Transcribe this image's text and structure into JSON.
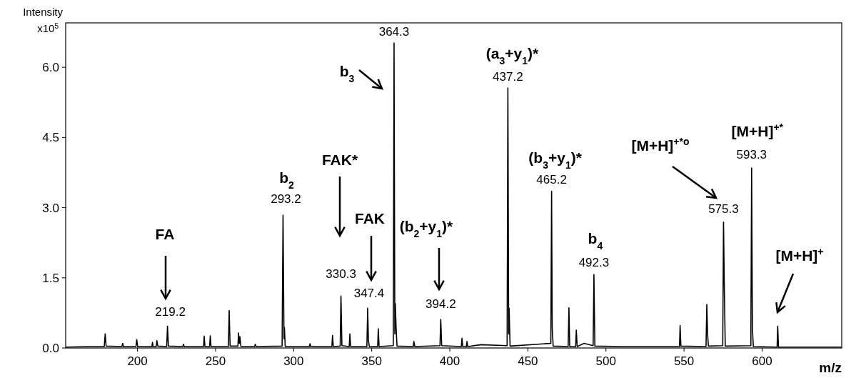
{
  "chart_data": {
    "type": "line",
    "xlabel": "m/z",
    "ylabel": "Intensity x10$^{5}$",
    "xlim": [
      154,
      651
    ],
    "ylim": [
      0,
      6.95
    ],
    "xticks": [
      200,
      250,
      300,
      350,
      400,
      450,
      500,
      550,
      600
    ],
    "yticks": [
      {
        "value": 0,
        "label": "0.0"
      },
      {
        "value": 1.5,
        "label": "1.5"
      },
      {
        "value": 3,
        "label": "3.0"
      },
      {
        "value": 4.5,
        "label": "4.5"
      },
      {
        "value": 6,
        "label": "6.0"
      }
    ],
    "grid": false,
    "marker": "none",
    "line_style": "solid",
    "series": [
      {
        "color": "#000000",
        "x": [
          154,
          170,
          178.7,
          179.3,
          179.9,
          190,
          190.5,
          191,
          199,
          199.5,
          200.1,
          209.2,
          209.6,
          210,
          212,
          212.4,
          213,
          218.7,
          219.2,
          219.8,
          229,
          229.4,
          230,
          242.3,
          242.7,
          243.2,
          246.2,
          246.6,
          247.1,
          258.2,
          258.7,
          259.3,
          264.3,
          264.7,
          265.2,
          265.6,
          266.2,
          275,
          275.4,
          276,
          292.6,
          293.2,
          293.8,
          294.1,
          294.6,
          310,
          310.5,
          311,
          324.5,
          324.9,
          325.4,
          329.8,
          330.3,
          330.9,
          335.6,
          336,
          336.5,
          346.9,
          347.4,
          347.9,
          348.5,
          353.8,
          354.2,
          354.7,
          363.8,
          364.3,
          364.8,
          365.1,
          365.6,
          366.2,
          376.6,
          377,
          377.6,
          393.7,
          394.2,
          394.8,
          407.4,
          407.8,
          408.3,
          410.6,
          411,
          411.5,
          420,
          436.7,
          437.2,
          437.7,
          438,
          438.6,
          464.7,
          465.2,
          465.6,
          466.2,
          475.8,
          476.3,
          476.8,
          480.6,
          481,
          481.6,
          486,
          491.8,
          492.3,
          492.9,
          510,
          547.1,
          547.5,
          548,
          564.1,
          564.6,
          565.1,
          565.6,
          574.8,
          575.3,
          575.8,
          576.4,
          592.8,
          593.3,
          593.8,
          594.4,
          609.6,
          610,
          610.5,
          651
        ],
        "values": [
          0.02,
          0.03,
          0.03,
          0.3,
          0.04,
          0.03,
          0.1,
          0.03,
          0.03,
          0.18,
          0.03,
          0.03,
          0.12,
          0.03,
          0.03,
          0.16,
          0.04,
          0.03,
          0.47,
          0.04,
          0.03,
          0.08,
          0.03,
          0.03,
          0.25,
          0.03,
          0.03,
          0.26,
          0.03,
          0.03,
          0.8,
          0.04,
          0.04,
          0.32,
          0.1,
          0.24,
          0.03,
          0.03,
          0.08,
          0.03,
          0.04,
          2.84,
          0.2,
          0.44,
          0.03,
          0.03,
          0.09,
          0.03,
          0.03,
          0.27,
          0.03,
          0.04,
          1.11,
          0.05,
          0.03,
          0.3,
          0.03,
          0.03,
          0.85,
          0.15,
          0.03,
          0.03,
          0.41,
          0.03,
          0.05,
          6.52,
          0.3,
          0.95,
          0.44,
          0.04,
          0.03,
          0.14,
          0.03,
          0.05,
          0.61,
          0.05,
          0.03,
          0.21,
          0.03,
          0.03,
          0.14,
          0.03,
          0.07,
          0.05,
          5.56,
          0.3,
          0.85,
          0.04,
          0.1,
          3.35,
          0.41,
          0.04,
          0.03,
          0.86,
          0.03,
          0.03,
          0.38,
          0.03,
          0.1,
          0.05,
          1.57,
          0.04,
          0.03,
          0.03,
          0.48,
          0.04,
          0.03,
          0.93,
          0.3,
          0.04,
          0.05,
          2.69,
          1.35,
          0.04,
          0.05,
          3.85,
          0.41,
          0.03,
          0.02,
          0.47,
          0.02,
          0.02
        ]
      }
    ],
    "annotations": [
      {
        "text": "219.2",
        "x": 219.2,
        "y": 0.47
      },
      {
        "text": "293.2",
        "x": 293.2,
        "y": 2.84
      },
      {
        "text": "330.3",
        "x": 330.3,
        "y": 1.11
      },
      {
        "text": "347.4",
        "x": 347.4,
        "y": 0.85
      },
      {
        "text": "364.3",
        "x": 364.3,
        "y": 6.52
      },
      {
        "text": "394.2",
        "x": 394.2,
        "y": 0.61
      },
      {
        "text": "437.2",
        "x": 437.2,
        "y": 5.56
      },
      {
        "text": "465.2",
        "x": 465.2,
        "y": 3.35
      },
      {
        "text": "492.3",
        "x": 492.3,
        "y": 1.57
      },
      {
        "text": "575.3",
        "x": 575.3,
        "y": 2.69
      },
      {
        "text": "593.3",
        "x": 593.3,
        "y": 3.85
      },
      "FA",
      {
        "text": "b$_{2}$",
        "x": 293.2,
        "y": 2.84
      },
      "FAK*",
      "FAK",
      "b$_{3}$",
      "(b$_{2}$+y$_{1}$)*",
      {
        "text": "(a$_{3}$+y$_{1}$)*",
        "x": 437.2,
        "y": 5.56
      },
      {
        "text": "(b$_{3}$+y$_{1}$)*",
        "x": 465.2,
        "y": 3.35
      },
      {
        "text": "b$_{4}$",
        "x": 492.3,
        "y": 1.57
      },
      "[M+H]$^{+*o}$",
      {
        "text": "[M+H]$^{+*}$",
        "x": 593.3,
        "y": 3.85
      },
      "[M+H]$^{+}$"
    ]
  }
}
